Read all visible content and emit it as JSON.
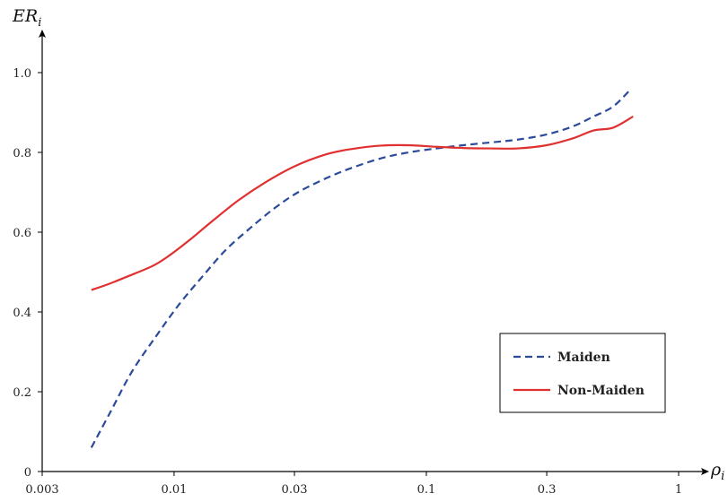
{
  "chart_data": {
    "type": "line",
    "title": "",
    "xlabel": {
      "main": "ρ",
      "sub": "i"
    },
    "ylabel": {
      "main": "ER",
      "sub": "i"
    },
    "xscale": "log",
    "xlim": [
      0.003,
      1.0
    ],
    "ylim": [
      0,
      1.0
    ],
    "x_ticks": [
      {
        "value": 0.003,
        "label": "0.003"
      },
      {
        "value": 0.01,
        "label": "0.01"
      },
      {
        "value": 0.03,
        "label": "0.03"
      },
      {
        "value": 0.1,
        "label": "0.1"
      },
      {
        "value": 0.3,
        "label": "0.3"
      },
      {
        "value": 1.0,
        "label": "1"
      }
    ],
    "y_ticks": [
      {
        "value": 0,
        "label": "0"
      },
      {
        "value": 0.2,
        "label": "0.2"
      },
      {
        "value": 0.4,
        "label": "0.4"
      },
      {
        "value": 0.6,
        "label": "0.6"
      },
      {
        "value": 0.8,
        "label": "0.8"
      },
      {
        "value": 1.0,
        "label": "1.0"
      }
    ],
    "grid": false,
    "legend_position": "lower-right",
    "series": [
      {
        "name": "Maiden",
        "color": "#2b4a9a",
        "dash": "dashed",
        "x": [
          0.0047,
          0.0056,
          0.0068,
          0.0085,
          0.0105,
          0.013,
          0.016,
          0.02,
          0.025,
          0.031,
          0.04,
          0.05,
          0.066,
          0.085,
          0.11,
          0.14,
          0.18,
          0.23,
          0.3,
          0.38,
          0.46,
          0.55,
          0.65
        ],
        "y": [
          0.06,
          0.15,
          0.25,
          0.34,
          0.42,
          0.49,
          0.555,
          0.61,
          0.66,
          0.7,
          0.735,
          0.76,
          0.785,
          0.8,
          0.81,
          0.818,
          0.825,
          0.832,
          0.845,
          0.865,
          0.89,
          0.915,
          0.96
        ]
      },
      {
        "name": "Non-Maiden",
        "color": "#e03030",
        "dash": "solid",
        "x": [
          0.0047,
          0.0055,
          0.0066,
          0.0082,
          0.0095,
          0.0115,
          0.014,
          0.018,
          0.023,
          0.03,
          0.04,
          0.05,
          0.066,
          0.085,
          0.11,
          0.14,
          0.18,
          0.23,
          0.3,
          0.38,
          0.46,
          0.55,
          0.66
        ],
        "y": [
          0.455,
          0.47,
          0.49,
          0.515,
          0.54,
          0.58,
          0.625,
          0.68,
          0.725,
          0.765,
          0.795,
          0.808,
          0.817,
          0.818,
          0.814,
          0.811,
          0.81,
          0.81,
          0.818,
          0.835,
          0.855,
          0.862,
          0.89
        ]
      }
    ]
  }
}
